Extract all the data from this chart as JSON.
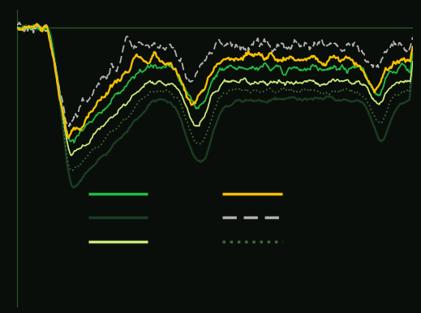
{
  "background_color": "#0a0e0a",
  "plot_bg_color": "#0a0e0a",
  "line_colors": {
    "bright_green": "#22bb44",
    "dark_green": "#1b3d22",
    "light_green": "#c8e87a",
    "yellow": "#f5c000",
    "gray_dash": "#b0b0b0",
    "dark_dotted": "#3a6b3a"
  },
  "baseline_color": "#2a6a3a",
  "n_points": 500
}
